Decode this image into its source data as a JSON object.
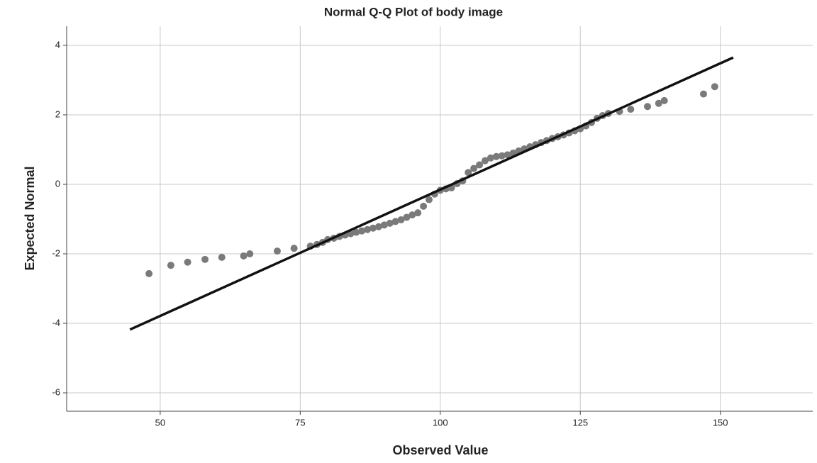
{
  "chart_data": {
    "type": "scatter",
    "title": "Normal Q-Q Plot of body image",
    "x_label": "Observed Value",
    "y_label": "Expected Normal",
    "xlim": [
      33.3,
      166.5
    ],
    "ylim": [
      -6.53,
      4.55
    ],
    "xticks": [
      50,
      75,
      100,
      125,
      150
    ],
    "yticks": [
      4,
      2,
      0,
      -2,
      -4,
      -6
    ],
    "grid": true,
    "points": {
      "color": "#7a7a7a",
      "x": [
        48,
        51.9,
        54.9,
        58,
        61,
        64.9,
        66,
        70.9,
        73.9,
        76.8,
        78,
        79,
        79.9,
        81,
        82,
        83,
        84,
        85,
        86,
        87,
        88,
        89,
        90,
        91,
        92,
        93,
        94,
        95,
        96,
        97,
        98,
        99,
        100,
        101,
        102,
        103,
        104,
        105,
        106,
        107,
        108,
        109,
        110,
        111,
        112,
        113,
        114,
        115,
        116,
        117,
        118,
        119,
        120,
        121,
        122,
        123,
        124,
        125,
        126,
        127,
        128,
        129,
        130,
        132,
        134,
        137,
        139,
        140,
        147,
        149
      ],
      "y": [
        -2.57,
        -2.33,
        -2.24,
        -2.16,
        -2.1,
        -2.06,
        -2.0,
        -1.92,
        -1.84,
        -1.78,
        -1.73,
        -1.67,
        -1.59,
        -1.55,
        -1.5,
        -1.46,
        -1.42,
        -1.38,
        -1.34,
        -1.3,
        -1.26,
        -1.22,
        -1.17,
        -1.12,
        -1.07,
        -1.02,
        -0.95,
        -0.88,
        -0.82,
        -0.63,
        -0.44,
        -0.28,
        -0.17,
        -0.13,
        -0.1,
        0.02,
        0.1,
        0.34,
        0.46,
        0.56,
        0.68,
        0.76,
        0.8,
        0.82,
        0.85,
        0.9,
        0.96,
        1.02,
        1.08,
        1.14,
        1.2,
        1.26,
        1.32,
        1.37,
        1.42,
        1.48,
        1.54,
        1.6,
        1.68,
        1.78,
        1.9,
        1.98,
        2.04,
        2.1,
        2.16,
        2.24,
        2.33,
        2.41,
        2.6,
        2.81
      ]
    },
    "reference_line": {
      "color": "#111111",
      "x": [
        44.6,
        152.3
      ],
      "y": [
        -4.18,
        3.65
      ]
    }
  }
}
